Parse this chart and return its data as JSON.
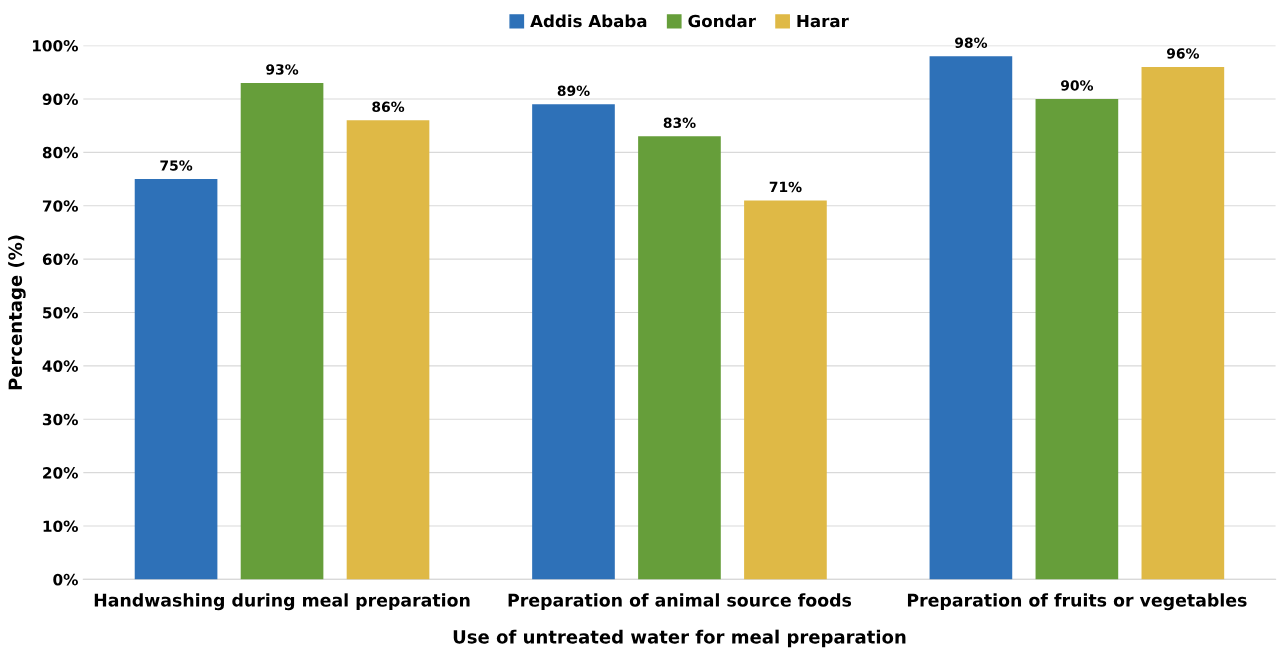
{
  "chart_data": {
    "type": "bar",
    "xlabel": "Use of untreated water for meal preparation",
    "ylabel": "Percentage (%)",
    "categories": [
      "Handwashing during meal preparation",
      "Preparation of animal source foods",
      "Preparation of fruits or vegetables"
    ],
    "series": [
      {
        "name": "Addis Ababa",
        "color": "#2e71b8",
        "values": [
          75,
          89,
          98
        ],
        "value_labels": [
          "75%",
          "89%",
          "98%"
        ]
      },
      {
        "name": "Gondar",
        "color": "#669e3a",
        "values": [
          93,
          83,
          90
        ],
        "value_labels": [
          "93%",
          "83%",
          "90%"
        ]
      },
      {
        "name": "Harar",
        "color": "#dfb946",
        "values": [
          86,
          71,
          96
        ],
        "value_labels": [
          "86%",
          "71%",
          "96%"
        ]
      }
    ],
    "ylim": [
      0,
      100
    ],
    "yticks": [
      {
        "value": 0,
        "label": "0%"
      },
      {
        "value": 10,
        "label": "10%"
      },
      {
        "value": 20,
        "label": "20%"
      },
      {
        "value": 30,
        "label": "30%"
      },
      {
        "value": 40,
        "label": "40%"
      },
      {
        "value": 50,
        "label": "50%"
      },
      {
        "value": 60,
        "label": "60%"
      },
      {
        "value": 70,
        "label": "70%"
      },
      {
        "value": 80,
        "label": "80%"
      },
      {
        "value": 90,
        "label": "90%"
      },
      {
        "value": 100,
        "label": "100%"
      }
    ],
    "grid": "y",
    "legend": "top"
  }
}
